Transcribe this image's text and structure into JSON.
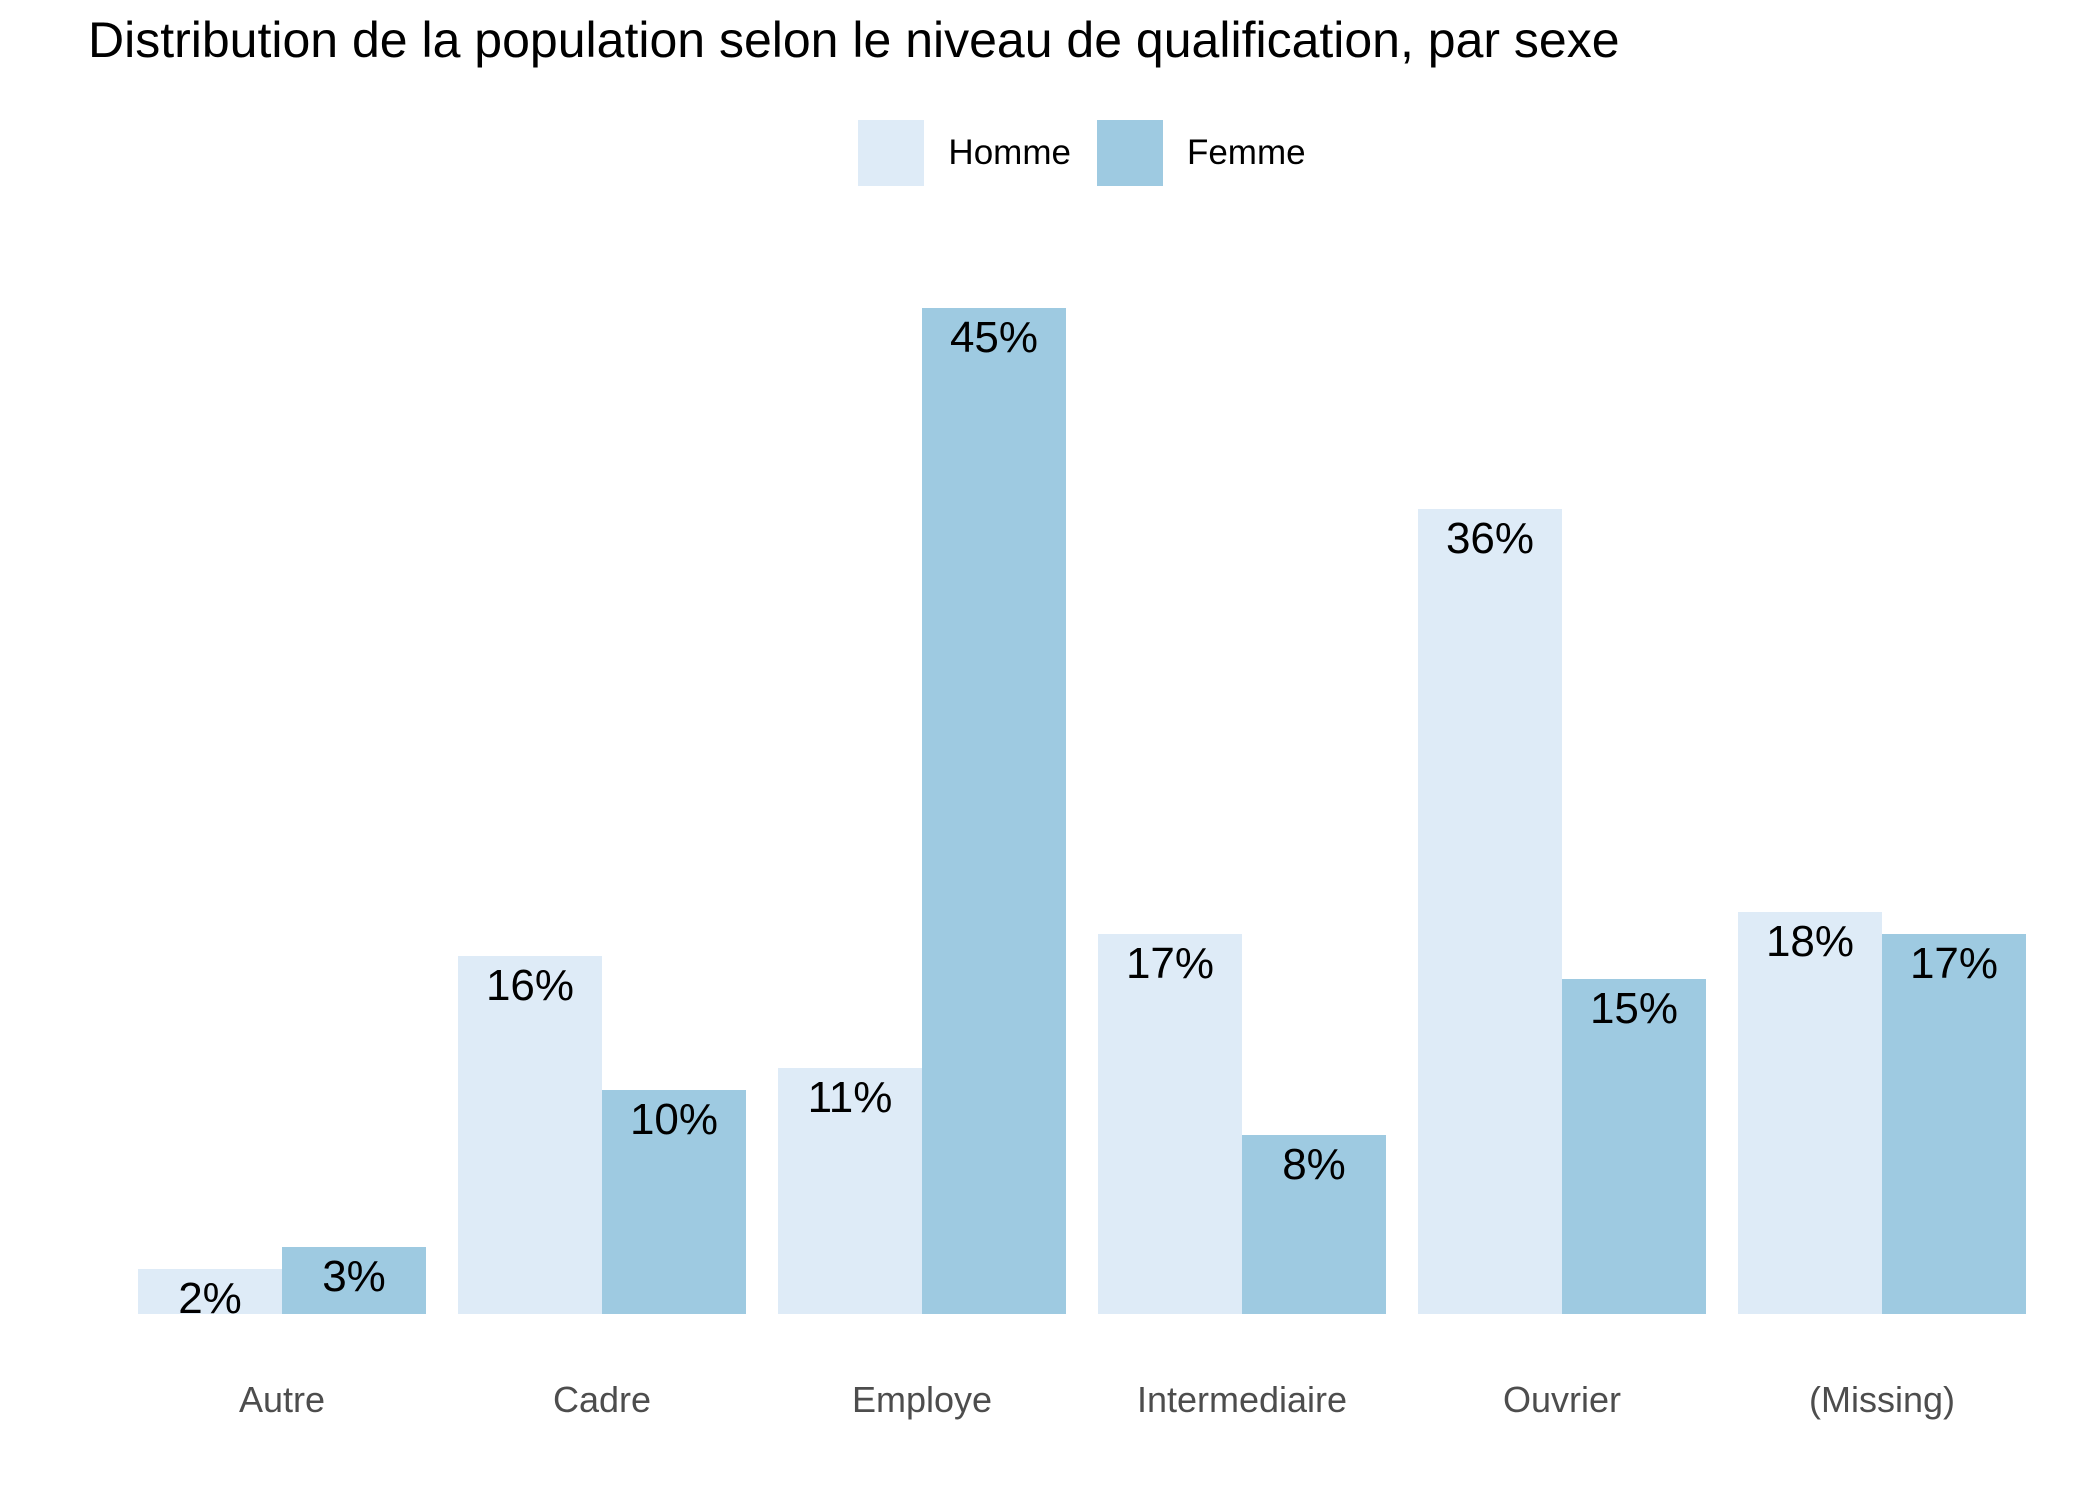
{
  "chart_data": {
    "type": "bar",
    "title": "Distribution de la population selon le niveau de qualification, par sexe",
    "categories": [
      "Autre",
      "Cadre",
      "Employe",
      "Intermediaire",
      "Ouvrier",
      "(Missing)"
    ],
    "series": [
      {
        "name": "Homme",
        "color": "#DEEBF7",
        "values": [
          2,
          16,
          11,
          17,
          36,
          18
        ]
      },
      {
        "name": "Femme",
        "color": "#9ECAE1",
        "values": [
          3,
          10,
          45,
          8,
          15,
          17
        ]
      }
    ],
    "value_suffix": "%",
    "data_labels": "inside-top",
    "xlabel": "",
    "ylabel": "",
    "ylim": [
      0,
      50
    ],
    "grid": false,
    "axis_lines": false,
    "legend_position": "top-center",
    "colors": {
      "axis_label_color": "#4D4D4D",
      "data_label_color": "#000000",
      "title_color": "#000000",
      "background": "#FFFFFF"
    }
  }
}
